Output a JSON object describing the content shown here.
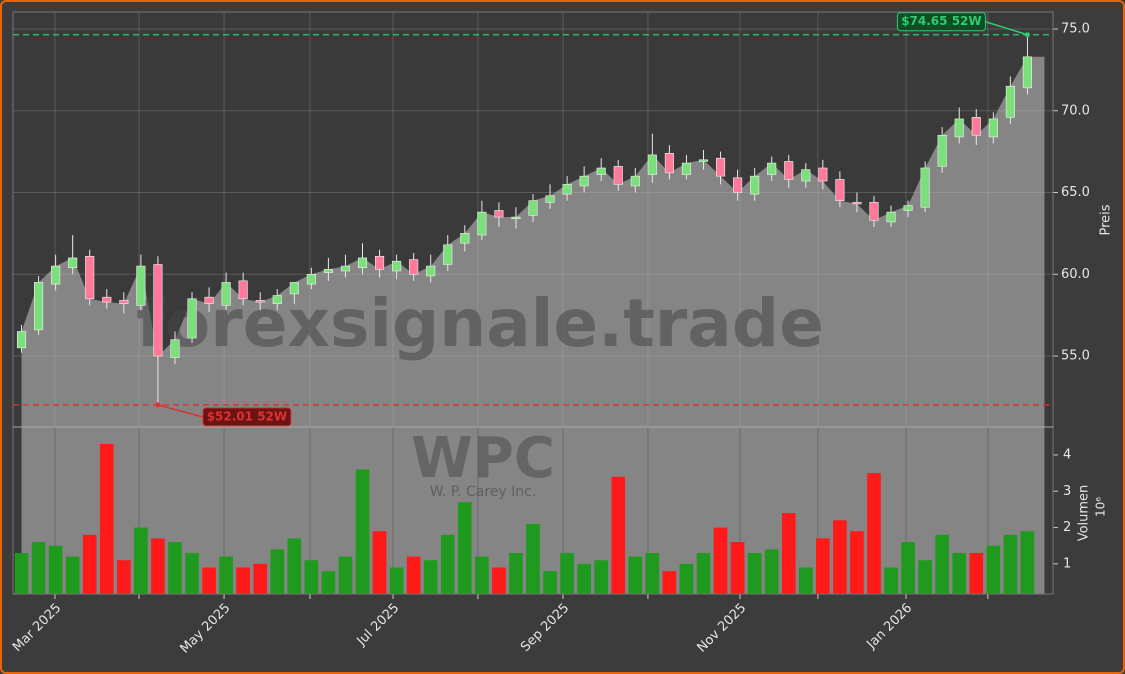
{
  "chart_data": {
    "type": "candlestick",
    "watermark": "forexsignale.trade",
    "symbol": "WPC",
    "company": "W. P. Carey Inc.",
    "xlim": [
      0,
      61
    ],
    "xticks": [
      {
        "value": 2.46,
        "label": "Mar 2025"
      },
      {
        "value": 7.39,
        "label": null
      },
      {
        "value": 12.38,
        "label": "May 2025"
      },
      {
        "value": 17.42,
        "label": null
      },
      {
        "value": 22.29,
        "label": "Jul 2025"
      },
      {
        "value": 27.27,
        "label": null
      },
      {
        "value": 32.26,
        "label": "Sep 2025"
      },
      {
        "value": 37.24,
        "label": null
      },
      {
        "value": 42.64,
        "label": "Nov 2025"
      },
      {
        "value": 47.21,
        "label": null
      },
      {
        "value": 52.38,
        "label": "Jan 2026"
      },
      {
        "value": 57.18,
        "label": null
      }
    ],
    "open": [
      55.5,
      56.6,
      59.4,
      60.4,
      61.1,
      58.6,
      58.4,
      58.1,
      60.6,
      54.9,
      56.1,
      58.6,
      58.1,
      59.6,
      58.4,
      58.2,
      58.8,
      59.4,
      60.1,
      60.2,
      60.4,
      61.1,
      60.2,
      60.9,
      59.9,
      60.6,
      61.9,
      62.4,
      63.9,
      63.4,
      63.6,
      64.4,
      64.9,
      65.4,
      66.1,
      66.6,
      65.4,
      66.1,
      67.4,
      66.1,
      66.9,
      67.1,
      65.9,
      64.9,
      66.1,
      66.9,
      65.7,
      66.5,
      65.8,
      64.4,
      64.4,
      63.2,
      63.9,
      64.1,
      66.6,
      68.4,
      69.6,
      68.4,
      69.6,
      71.4
    ],
    "high": [
      56.9,
      59.9,
      61.2,
      62.4,
      61.5,
      59.1,
      58.9,
      61.2,
      61.1,
      56.5,
      58.9,
      59.2,
      60.1,
      60.1,
      58.9,
      59.1,
      59.4,
      60.4,
      61,
      61.2,
      61.9,
      61.5,
      61.2,
      61.3,
      61.2,
      62.4,
      63,
      64.5,
      64.4,
      64.1,
      64.9,
      65.5,
      66,
      66.6,
      67.1,
      67,
      66.5,
      68.6,
      67.9,
      67.3,
      67.6,
      67.5,
      66.4,
      66.5,
      67.2,
      67.3,
      66.8,
      67,
      66.3,
      65,
      64.8,
      64.2,
      64.5,
      66.9,
      69,
      70.2,
      70.1,
      69.9,
      72.1,
      74.65
    ],
    "low": [
      55.2,
      56.3,
      59,
      60,
      58.1,
      57.9,
      57.6,
      57.8,
      52.01,
      54.5,
      55.8,
      57.7,
      57.8,
      58.1,
      57.8,
      57.8,
      58.2,
      59.1,
      59.6,
      59.8,
      60,
      59.8,
      59.7,
      59.6,
      59.5,
      60.2,
      61.4,
      62.1,
      62.9,
      62.8,
      63.2,
      64,
      64.5,
      65,
      65.7,
      65.1,
      65,
      65.6,
      65.8,
      65.8,
      66.4,
      65.5,
      64.5,
      64.5,
      65.7,
      65.3,
      65.3,
      65.2,
      64.1,
      63.8,
      62.9,
      62.9,
      63.5,
      63.8,
      66.2,
      68,
      67.9,
      68,
      69.2,
      71
    ],
    "close": [
      56.5,
      59.5,
      60.5,
      61,
      58.5,
      58.3,
      58.2,
      60.5,
      55,
      56,
      58.5,
      58.2,
      59.5,
      58.5,
      58.3,
      58.7,
      59.5,
      60,
      60.3,
      60.5,
      61,
      60.3,
      60.8,
      60,
      60.5,
      61.8,
      62.5,
      63.8,
      63.5,
      63.5,
      64.5,
      64.8,
      65.5,
      66,
      66.5,
      65.5,
      66,
      67.3,
      66.2,
      66.8,
      67,
      66,
      65,
      66,
      66.8,
      65.8,
      66.4,
      65.7,
      64.5,
      64.3,
      63.3,
      63.8,
      64.2,
      66.5,
      68.5,
      69.5,
      68.5,
      69.5,
      71.5,
      73.3
    ],
    "volume": [
      1.3,
      1.6,
      1.5,
      1.2,
      1.8,
      4.3,
      1.1,
      2,
      1.7,
      1.6,
      1.3,
      0.9,
      1.2,
      0.9,
      1,
      1.4,
      1.7,
      1.1,
      0.8,
      1.2,
      3.6,
      1.9,
      0.9,
      1.2,
      1.1,
      1.8,
      2.7,
      1.2,
      0.9,
      1.3,
      2.1,
      0.8,
      1.3,
      1.0,
      1.1,
      3.4,
      1.2,
      1.3,
      0.8,
      1.0,
      1.3,
      2.0,
      1.6,
      1.3,
      1.4,
      2.4,
      0.9,
      1.7,
      2.2,
      1.9,
      3.5,
      0.9,
      1.6,
      1.1,
      1.8,
      1.3,
      1.3,
      1.5,
      1.8,
      1.9
    ],
    "up_color": "#1f9a1f",
    "down_color": "#ff1a1a",
    "area_color": "#858585",
    "ylim": [
      50.66,
      76.04
    ],
    "yticks": [
      {
        "value": 55,
        "label": "55.0"
      },
      {
        "value": 60,
        "label": "60.0"
      },
      {
        "value": 65,
        "label": "65.0"
      },
      {
        "value": 70,
        "label": "70.0"
      },
      {
        "value": 75,
        "label": "75.0"
      }
    ],
    "ylabel": "Preis",
    "y2lim": [
      0.17,
      4.77
    ],
    "y2ticks": [
      1,
      2,
      3,
      4
    ],
    "y2label": "Volumen",
    "y2offset": "10⁶",
    "grid": true,
    "hlines": [
      {
        "value": 74.65,
        "label": "$74.65 52W",
        "color": "#2ecc71"
      },
      {
        "value": 52.01,
        "label": "$52.01 52W",
        "color": "#e03030"
      }
    ]
  }
}
